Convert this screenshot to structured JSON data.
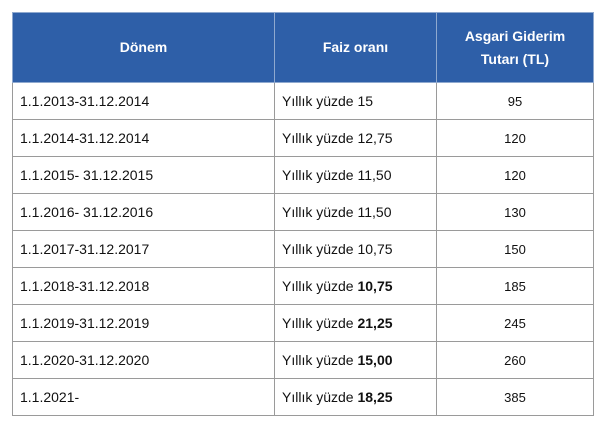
{
  "table": {
    "headers": {
      "period": "Dönem",
      "rate": "Faiz oranı",
      "amount_line1": "Asgari Giderim",
      "amount_line2": "Tutarı (TL)"
    },
    "rows": [
      {
        "period": "1.1.2013-31.12.2014",
        "rate_prefix": "Yıllık yüzde",
        "rate_value": "15",
        "rate_bold": false,
        "amount": "95"
      },
      {
        "period": "1.1.2014-31.12.2014",
        "rate_prefix": "Yıllık yüzde",
        "rate_value": "12,75",
        "rate_bold": false,
        "amount": "120"
      },
      {
        "period": "1.1.2015- 31.12.2015",
        "rate_prefix": "Yıllık yüzde",
        "rate_value": "11,50",
        "rate_bold": false,
        "amount": "120"
      },
      {
        "period": "1.1.2016- 31.12.2016",
        "rate_prefix": "Yıllık yüzde",
        "rate_value": "11,50",
        "rate_bold": false,
        "amount": "130"
      },
      {
        "period": "1.1.2017-31.12.2017",
        "rate_prefix": "Yıllık yüzde",
        "rate_value": "10,75",
        "rate_bold": false,
        "amount": "150"
      },
      {
        "period": "1.1.2018-31.12.2018",
        "rate_prefix": "Yıllık yüzde",
        "rate_value": "10,75",
        "rate_bold": true,
        "amount": "185"
      },
      {
        "period": "1.1.2019-31.12.2019",
        "rate_prefix": "Yıllık yüzde",
        "rate_value": "21,25",
        "rate_bold": true,
        "amount": "245"
      },
      {
        "period": "1.1.2020-31.12.2020",
        "rate_prefix": "Yıllık yüzde",
        "rate_value": "15,00",
        "rate_bold": true,
        "amount": "260"
      },
      {
        "period": "1.1.2021-",
        "rate_prefix": "Yıllık yüzde",
        "rate_value": "18,25",
        "rate_bold": true,
        "amount": "385"
      }
    ]
  },
  "colors": {
    "header_bg": "#2e5fa8",
    "header_text": "#ffffff",
    "grid": "#9a9a9a"
  }
}
